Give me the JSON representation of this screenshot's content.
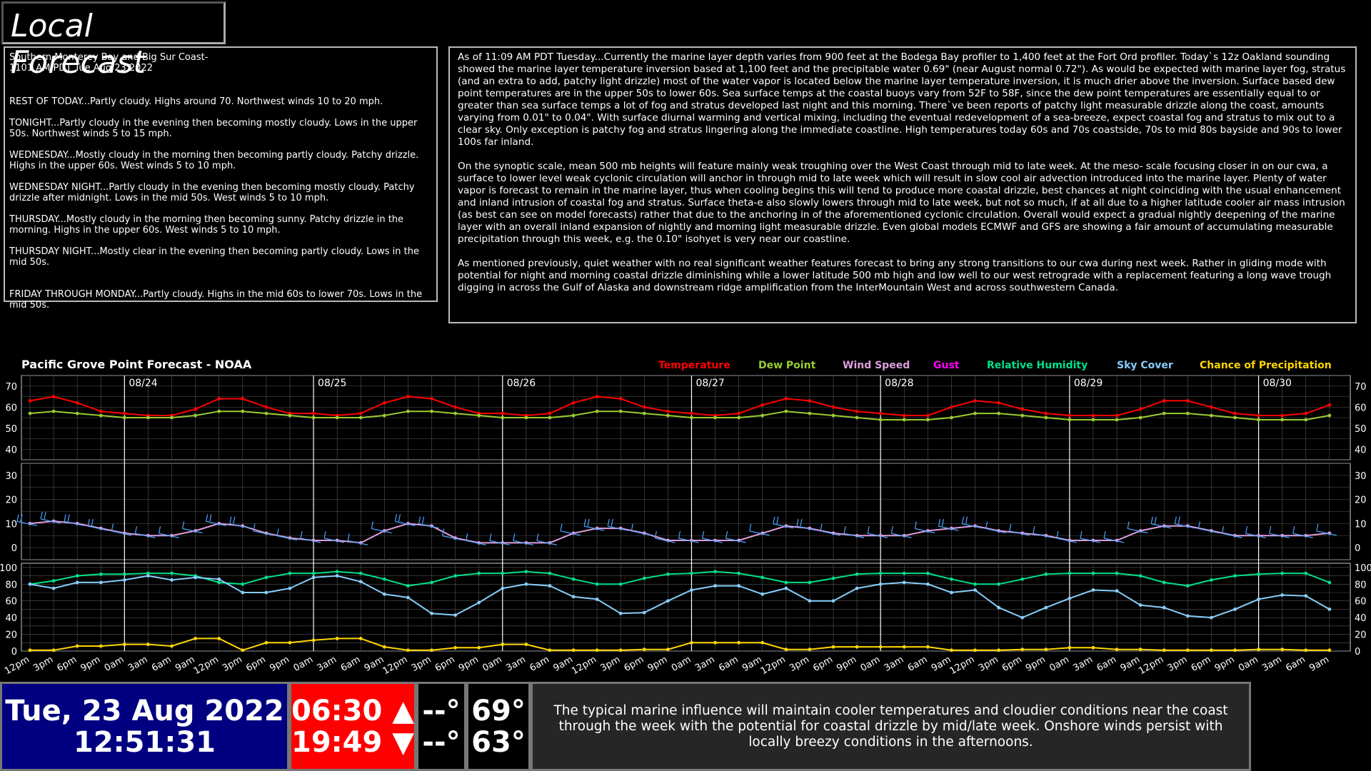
{
  "page_title": "Local Forecast",
  "zone_forecast": {
    "header": "Southern Monterey Bay and Big Sur Coast-\n1101 AM PDT Tue Aug 23 2022",
    "periods": [
      "REST OF TODAY...Partly cloudy. Highs around 70. Northwest winds 10 to 20 mph.",
      "TONIGHT...Partly cloudy in the evening then becoming mostly cloudy. Lows in the upper 50s. Northwest winds 5 to 15 mph.",
      "WEDNESDAY...Mostly cloudy in the morning then becoming partly cloudy. Patchy drizzle. Highs in the upper 60s. West winds 5 to 10 mph.",
      "WEDNESDAY NIGHT...Partly cloudy in the evening then becoming mostly cloudy. Patchy drizzle after midnight. Lows in the mid 50s. West winds 5 to 10 mph.",
      "THURSDAY...Mostly cloudy in the morning then becoming sunny. Patchy drizzle in the morning. Highs in the upper 60s. West winds 5 to 10 mph.",
      "THURSDAY NIGHT...Mostly clear in the evening then becoming partly cloudy. Lows in the mid 50s.",
      "FRIDAY THROUGH MONDAY...Partly cloudy. Highs in the mid 60s to lower 70s. Lows in the mid 50s."
    ]
  },
  "discussion": [
    "As of 11:09 AM PDT Tuesday...Currently the marine layer depth varies from 900 feet at the Bodega Bay profiler to 1,400 feet at the Fort Ord profiler. Today`s 12z Oakland sounding showed the marine layer temperature inversion based at 1,100 feet and the precipitable water 0.69\" (near August normal 0.72\"). As would be expected with marine layer fog, stratus (and an extra to add, patchy light drizzle) most of the water vapor is located below the marine layer temperature inversion, it is much drier above the inversion. Surface based dew point temperatures are in the upper 50s to lower 60s. Sea surface temps at the coastal buoys vary from 52F to 58F, since the dew point temperatures are essentially equal to or greater than sea surface temps a lot of fog and stratus developed last night and this morning. There`ve been reports of patchy light measurable drizzle along the coast, amounts varying from 0.01\" to 0.04\". With surface diurnal warming and vertical mixing, including the eventual redevelopment of a sea-breeze, expect coastal fog and stratus to mix out to a clear sky. Only exception is patchy fog and stratus lingering along the immediate coastline. High temperatures today 60s and 70s coastside, 70s to mid 80s bayside and 90s to lower 100s far inland.",
    "On the synoptic scale, mean 500 mb heights will feature mainly weak troughing over the West Coast through mid to late week. At the meso- scale focusing closer in on our cwa, a surface to lower level weak cyclonic circulation will anchor in through mid to late week which will result in slow cool air advection introduced into the marine layer. Plenty of water vapor is forecast to remain in the marine layer, thus when cooling begins this will tend to produce more coastal drizzle, best chances at night coinciding with the usual enhancement and inland intrusion of coastal fog and stratus. Surface theta-e also slowly lowers through mid to late week, but not so much, if at all due to a higher latitude cooler air mass intrusion (as best can see on model forecasts) rather that due to the anchoring in of the aforementioned cyclonic circulation. Overall would expect a gradual nightly deepening of the marine layer with an overall inland expansion of nightly and morning light measurable drizzle. Even global models ECMWF and GFS are showing a fair amount of accumulating measurable precipitation through this week, e.g. the 0.10\" isohyet is very near our coastline.",
    "As mentioned previously, quiet weather with no real significant weather features forecast to bring any strong transitions to our cwa during next week. Rather in gliding mode with potential for night and morning coastal drizzle diminishing while a lower latitude 500 mb high and low well to our west retrograde with a replacement featuring a long wave trough digging in across the Gulf of Alaska and downstream ridge amplification from the InterMountain West and across southwestern Canada."
  ],
  "chart_data": {
    "type": "line",
    "title": "Pacific Grove Point Forecast - NOAA",
    "start": "08/23 12pm",
    "step_hours": 3,
    "day_labels": [
      "08/24",
      "08/25",
      "08/26",
      "08/27",
      "08/28",
      "08/29",
      "08/30"
    ],
    "tick_labels": [
      "12pm",
      "3pm",
      "6pm",
      "9pm",
      "0am",
      "3am",
      "6am",
      "9am"
    ],
    "legend": [
      {
        "name": "Temperature",
        "color": "#ff0000"
      },
      {
        "name": "Dew Point",
        "color": "#9acd32"
      },
      {
        "name": "Wind Speed",
        "color": "#dda0dd"
      },
      {
        "name": "Gust",
        "color": "#ff00ff"
      },
      {
        "name": "Relative Humidity",
        "color": "#00e08a"
      },
      {
        "name": "Sky Cover",
        "color": "#87cefa"
      },
      {
        "name": "Chance of Precipitation",
        "color": "#ffd700"
      }
    ],
    "panels": [
      {
        "ylim": [
          35,
          75
        ],
        "ticks": [
          40,
          50,
          60,
          70
        ]
      },
      {
        "ylim": [
          -5,
          35
        ],
        "ticks": [
          0,
          10,
          20,
          30
        ]
      },
      {
        "ylim": [
          0,
          105
        ],
        "ticks": [
          0,
          20,
          40,
          60,
          80,
          100
        ]
      }
    ],
    "series": [
      {
        "name": "Temperature",
        "panel": 0,
        "color": "#ff0000",
        "values": [
          63,
          65,
          62,
          58,
          57,
          56,
          56,
          59,
          64,
          64,
          60,
          57,
          57,
          56,
          57,
          62,
          65,
          64,
          60,
          57,
          57,
          56,
          57,
          62,
          65,
          64,
          60,
          58,
          57,
          56,
          57,
          61,
          64,
          63,
          60,
          58,
          57,
          56,
          56,
          60,
          63,
          62,
          59,
          57,
          56,
          56,
          56,
          59,
          63,
          63,
          60,
          57,
          56,
          56,
          57,
          61
        ]
      },
      {
        "name": "Dew Point",
        "panel": 0,
        "color": "#9acd32",
        "values": [
          57,
          58,
          57,
          56,
          55,
          55,
          55,
          56,
          58,
          58,
          57,
          56,
          55,
          55,
          55,
          56,
          58,
          58,
          57,
          56,
          55,
          55,
          55,
          56,
          58,
          58,
          57,
          56,
          55,
          55,
          55,
          56,
          58,
          57,
          56,
          55,
          54,
          54,
          54,
          55,
          57,
          57,
          56,
          55,
          54,
          54,
          54,
          55,
          57,
          57,
          56,
          55,
          54,
          54,
          54,
          56
        ]
      },
      {
        "name": "Wind Speed",
        "panel": 1,
        "color": "#dda0dd",
        "values": [
          10,
          11,
          10,
          8,
          6,
          5,
          5,
          7,
          10,
          9,
          6,
          4,
          3,
          3,
          2,
          7,
          10,
          9,
          4,
          2,
          2,
          2,
          2,
          6,
          8,
          8,
          6,
          3,
          3,
          3,
          3,
          6,
          9,
          8,
          6,
          5,
          5,
          5,
          7,
          8,
          9,
          7,
          6,
          5,
          3,
          3,
          3,
          7,
          9,
          9,
          7,
          5,
          5,
          5,
          5,
          6
        ]
      },
      {
        "name": "Relative Humidity",
        "panel": 2,
        "color": "#00e08a",
        "values": [
          80,
          84,
          90,
          92,
          92,
          93,
          93,
          90,
          82,
          80,
          88,
          93,
          93,
          95,
          93,
          86,
          78,
          82,
          90,
          93,
          93,
          95,
          93,
          86,
          80,
          80,
          87,
          92,
          93,
          95,
          93,
          88,
          82,
          82,
          87,
          92,
          93,
          93,
          93,
          86,
          80,
          80,
          86,
          92,
          93,
          93,
          93,
          90,
          82,
          78,
          85,
          90,
          92,
          93,
          93,
          82
        ]
      },
      {
        "name": "Sky Cover",
        "panel": 2,
        "color": "#87cefa",
        "values": [
          80,
          75,
          82,
          82,
          85,
          90,
          85,
          88,
          86,
          70,
          70,
          75,
          88,
          90,
          83,
          68,
          64,
          45,
          43,
          58,
          75,
          80,
          78,
          65,
          62,
          45,
          46,
          60,
          73,
          78,
          78,
          68,
          75,
          60,
          60,
          75,
          80,
          82,
          80,
          70,
          73,
          52,
          40,
          52,
          63,
          73,
          72,
          55,
          52,
          42,
          40,
          50,
          62,
          67,
          66,
          50
        ]
      },
      {
        "name": "Chance of Precipitation",
        "panel": 2,
        "color": "#ffd700",
        "values": [
          1,
          1,
          6,
          6,
          8,
          8,
          6,
          15,
          15,
          1,
          10,
          10,
          13,
          15,
          15,
          5,
          1,
          1,
          4,
          4,
          8,
          8,
          1,
          1,
          1,
          1,
          2,
          2,
          10,
          10,
          10,
          10,
          2,
          2,
          5,
          5,
          5,
          5,
          5,
          1,
          1,
          1,
          2,
          2,
          4,
          4,
          2,
          2,
          1,
          1,
          1,
          1,
          2,
          2,
          1,
          1
        ]
      }
    ],
    "wind_direction": "northwest"
  },
  "bottom": {
    "date": "Tue, 23 Aug 2022",
    "time": "12:51:31",
    "sunrise": "06:30 ▲",
    "sunset": "19:49 ▼",
    "temp_a1": "--°",
    "temp_a2": "--°",
    "temp_b1": "69°",
    "temp_b2": "63°",
    "summary": "The typical marine influence will maintain cooler temperatures and cloudier conditions near the coast through the week with the potential for coastal drizzle by mid/late week. Onshore winds persist with locally breezy conditions in the afternoons."
  }
}
